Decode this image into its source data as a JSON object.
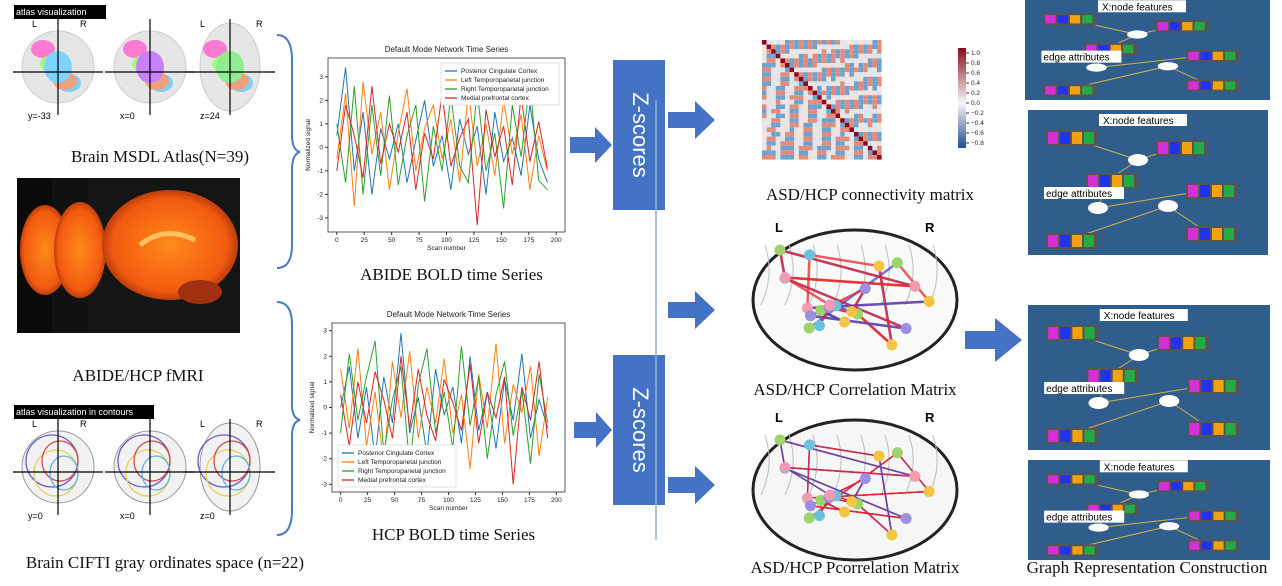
{
  "atlas_msdl": {
    "label": "atlas visualization",
    "left": "L",
    "right": "R",
    "left2": "L",
    "right2": "R",
    "coords": [
      "y=-33",
      "x=0",
      "z=24"
    ],
    "caption": "Brain MSDL  Atlas(N=39)"
  },
  "fmri": {
    "caption": "ABIDE/HCP  fMRI"
  },
  "atlas_cifti": {
    "label": "atlas visualization in contours",
    "left": "L",
    "right": "R",
    "left2": "L",
    "right2": "R",
    "coords": [
      "y=0",
      "x=0",
      "z=0"
    ],
    "caption": "Brain CIFTI gray ordinates space (n=22)"
  },
  "abide_chart": {
    "type": "line",
    "title": "Default Mode Network Time Series",
    "x_label": "Scan number",
    "y_label": "Normalized signal",
    "x": [
      0,
      8,
      16,
      24,
      32,
      40,
      48,
      56,
      64,
      72,
      80,
      88,
      96,
      104,
      112,
      120,
      128,
      136,
      144,
      152,
      160,
      168,
      176,
      184,
      192
    ],
    "series": [
      {
        "name": "Posterior Cingulate Cortex",
        "color": "#1f77b4",
        "values": [
          0.5,
          3.4,
          -1,
          1.5,
          -2,
          0.8,
          -0.5,
          1,
          -1.5,
          0.3,
          2,
          -0.8,
          0.5,
          -1.8,
          1.2,
          -0.3,
          0.9,
          -2,
          1.5,
          -0.6,
          0.4,
          -1.2,
          1.8,
          -0.5,
          -1.5
        ]
      },
      {
        "name": "Left Temporoparietal junction",
        "color": "#ff7f0e",
        "values": [
          -0.5,
          2.3,
          -2.5,
          2.8,
          -0.3,
          1.5,
          -1.8,
          0.6,
          2.5,
          -1,
          0.8,
          1.8,
          -0.5,
          1.2,
          -1.5,
          2.4,
          -0.8,
          1,
          -1.2,
          2,
          -0.3,
          1.4,
          -1.8,
          0.5,
          -1
        ]
      },
      {
        "name": "Right Temporoparietal junction",
        "color": "#2ca02c",
        "values": [
          1,
          -1.5,
          2.6,
          -2,
          1.8,
          -1.2,
          2.2,
          -1.6,
          0.5,
          1.8,
          -2.3,
          0.9,
          -1,
          2.2,
          -0.8,
          -1.5,
          2.4,
          -1,
          0.6,
          -2.6,
          1.8,
          -0.4,
          2.8,
          -1.4,
          -1.8
        ]
      },
      {
        "name": "Medial prefrontal cortex",
        "color": "#d62728",
        "values": [
          -1,
          1.8,
          0.5,
          -1.3,
          2.6,
          -0.7,
          1,
          -0.2,
          1.5,
          -1.8,
          0.6,
          -0.5,
          2.3,
          -0.8,
          0.4,
          1.2,
          -3.3,
          1.6,
          -0.4,
          0.9,
          -1.6,
          2.2,
          -0.6,
          1.1,
          -0.9
        ]
      }
    ],
    "xlim": [
      -8,
      208
    ],
    "ylim": [
      -3.6,
      3.8
    ],
    "xticks": [
      0,
      25,
      50,
      75,
      100,
      125,
      150,
      175,
      200
    ],
    "yticks": [
      -3,
      -2,
      -1,
      0,
      1,
      2,
      3
    ],
    "legend": "upper-right",
    "caption": "ABIDE BOLD time Series"
  },
  "hcp_chart": {
    "type": "line",
    "title": "Default Mode Network Time Series",
    "x_label": "Scan number",
    "y_label": "Normalized signal",
    "x": [
      0,
      8,
      16,
      24,
      32,
      40,
      48,
      56,
      64,
      72,
      80,
      88,
      96,
      104,
      112,
      120,
      128,
      136,
      144,
      152,
      160,
      168,
      176,
      184,
      192
    ],
    "series": [
      {
        "name": "Posterior Cingulate Cortex",
        "color": "#1f77b4",
        "values": [
          0,
          1.6,
          -1.2,
          0.8,
          -2,
          1.2,
          -0.6,
          2.9,
          -1,
          0.4,
          -1.8,
          1.5,
          -0.3,
          0.8,
          -1.4,
          2,
          -0.9,
          0.6,
          -1.6,
          1.1,
          -0.5,
          2.1,
          -1.2,
          0.3,
          -0.8
        ]
      },
      {
        "name": "Left Temporoparietal junction",
        "color": "#ff7f0e",
        "values": [
          1.5,
          -0.8,
          2.3,
          -1.5,
          0.6,
          -2.2,
          1.8,
          -0.4,
          2.2,
          -1.2,
          0.8,
          -0.6,
          1.9,
          -1,
          0.5,
          -2.4,
          1.3,
          -0.8,
          2.5,
          -1.4,
          0.9,
          -0.2,
          1.6,
          -1.9,
          0.4
        ]
      },
      {
        "name": "Right Temporoparietal junction",
        "color": "#2ca02c",
        "values": [
          -1,
          2.1,
          -0.5,
          1.2,
          2.6,
          -1.8,
          0.3,
          1.6,
          -2.3,
          0.9,
          2.3,
          -1,
          0.6,
          -1.6,
          2.4,
          -0.7,
          1.2,
          -2,
          0.5,
          1.8,
          -1.1,
          0.7,
          -2.2,
          1.3,
          -0.6
        ]
      },
      {
        "name": "Medial prefrontal cortex",
        "color": "#d62728",
        "values": [
          0.5,
          -1.5,
          1,
          -0.6,
          1.4,
          0.3,
          -1.2,
          2,
          -0.8,
          1.5,
          -0.3,
          -1.3,
          1.1,
          0.2,
          -0.9,
          1.7,
          -1.4,
          0.6,
          -0.4,
          1.2,
          -3,
          0.8,
          -0.5,
          1.8,
          -1.2
        ]
      }
    ],
    "xlim": [
      -8,
      208
    ],
    "ylim": [
      -3.3,
      3.3
    ],
    "xticks": [
      0,
      25,
      50,
      75,
      100,
      125,
      150,
      175,
      200
    ],
    "yticks": [
      -3,
      -2,
      -1,
      0,
      1,
      2,
      3
    ],
    "legend": "lower-left",
    "caption": "HCP BOLD time Series"
  },
  "zscores": [
    "Z-scores",
    "Z-scores"
  ],
  "connectivity": {
    "caption": "ASD/HCP connectivity matrix",
    "clim": [
      -0.9,
      1.1
    ],
    "cticks": [
      {
        "value": 1,
        "label": "1.0"
      },
      0.8,
      0.6,
      0.4,
      0.2,
      {
        "value": 0,
        "label": "0.0"
      },
      {
        "value": -0.2,
        "label": "−0.2"
      },
      {
        "value": -0.4,
        "label": "−0.4"
      },
      {
        "value": -0.6,
        "label": "−0.6"
      },
      {
        "value": -0.8,
        "label": "−0.8"
      }
    ]
  },
  "correlation": {
    "caption": "ASD/HCP Correlation Matrix",
    "left": "L",
    "right": "R"
  },
  "pcorrelation": {
    "caption": "ASD/HCP Pcorrelation Matrix",
    "left": "L",
    "right": "R"
  },
  "graphs": {
    "panels": [
      {
        "node_label": "X:node features",
        "edge_label": "edge attributes"
      },
      {
        "node_label": "X:node features",
        "edge_label": "edge attributes"
      },
      {
        "node_label": "X:node features",
        "edge_label": "edge attributes"
      },
      {
        "node_label": "X:node features",
        "edge_label": "edge attributes"
      }
    ],
    "caption": "Graph Representation Construction"
  }
}
